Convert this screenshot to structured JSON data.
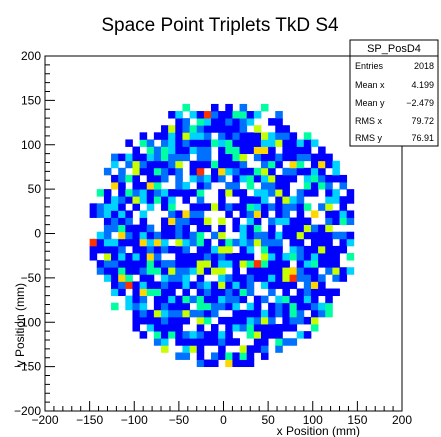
{
  "chart_data": {
    "type": "heatmap",
    "title": "Space Point Triplets TkD S4",
    "xlabel": "x Position (mm)",
    "ylabel": "y Position (mm)",
    "xlim": [
      -200,
      200
    ],
    "ylim": [
      -200,
      200
    ],
    "xticks": [
      "−200",
      "−150",
      "−100",
      "−50",
      "0",
      "50",
      "100",
      "150",
      "200"
    ],
    "yticks": [
      "−200",
      "−150",
      "−100",
      "−50",
      "0",
      "50",
      "100",
      "150",
      "200"
    ],
    "bin_size": 8,
    "distribution_radius": 150,
    "palette": [
      "#0000ff",
      "#0070ff",
      "#00d2ff",
      "#00ffa0",
      "#c8ff00",
      "#ffd700",
      "#ff3300"
    ],
    "stats": {
      "name": "SP_PosD4",
      "rows": [
        {
          "label": "Entries",
          "value": "2018"
        },
        {
          "label": "Mean x",
          "value": "4.199"
        },
        {
          "label": "Mean y",
          "value": "−2.479"
        },
        {
          "label": "RMS x",
          "value": "79.72"
        },
        {
          "label": "RMS y",
          "value": "76.91"
        }
      ]
    }
  }
}
